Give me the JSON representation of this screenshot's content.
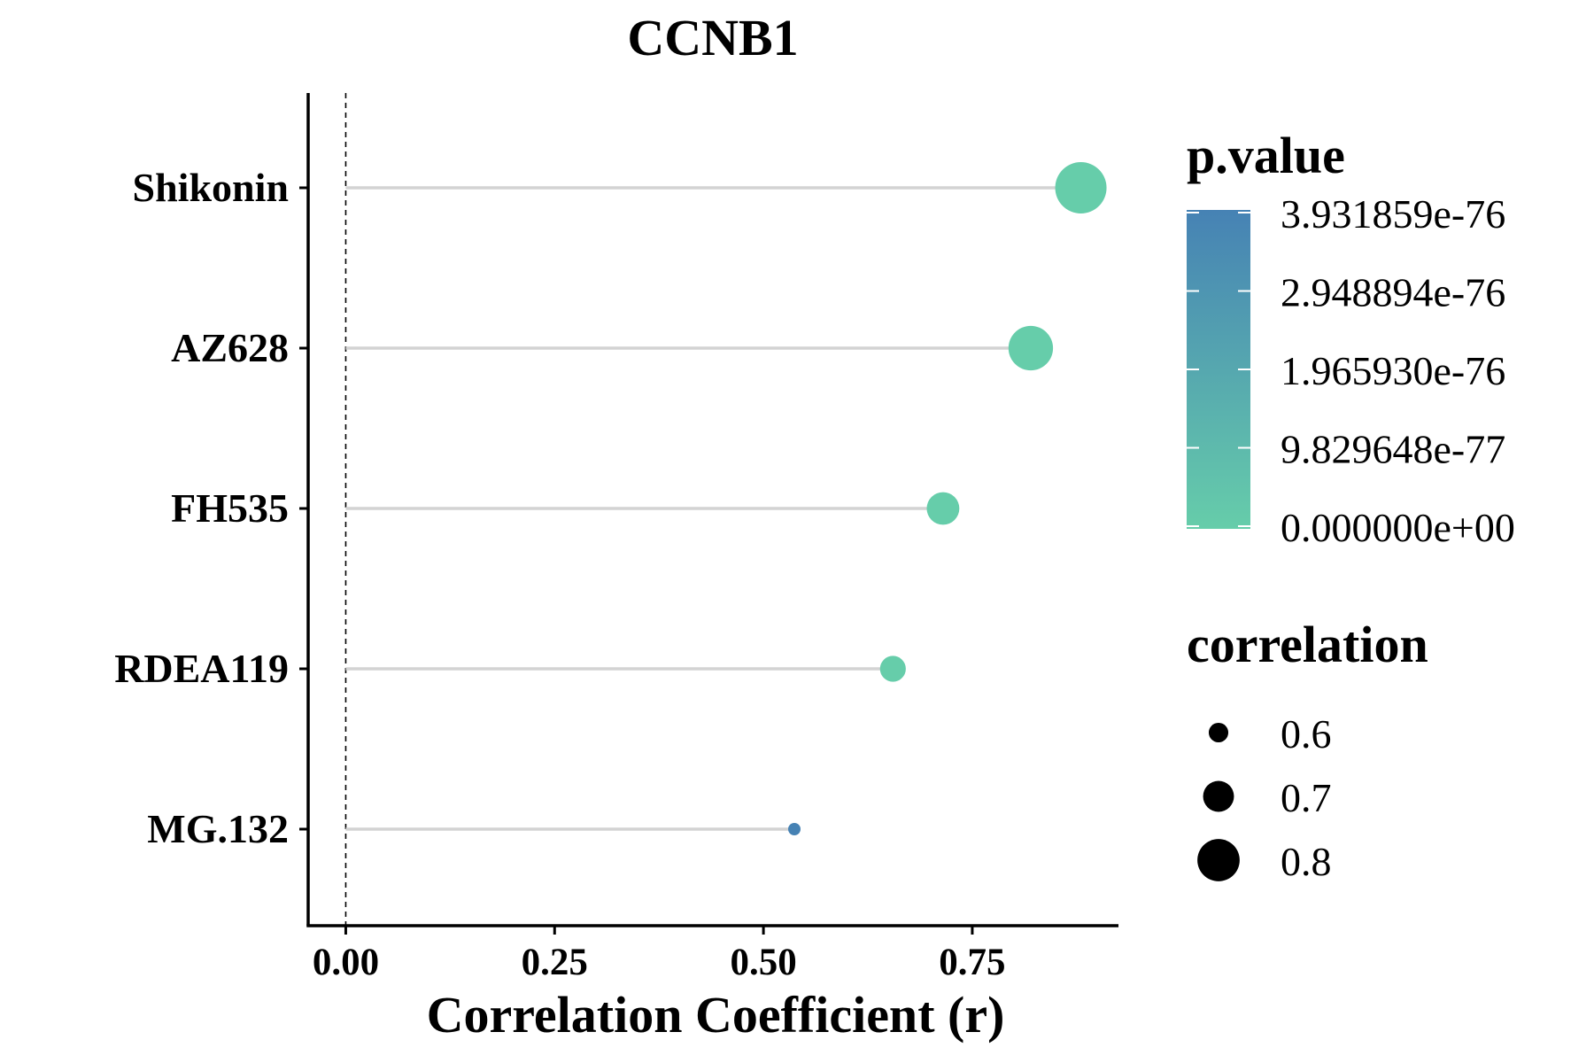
{
  "chart_data": {
    "type": "lollipop",
    "title": "CCNB1",
    "xlabel": "Correlation Coefficient (r)",
    "ylabel": "",
    "xlim": [
      -0.045,
      0.925
    ],
    "x_ticks": [
      "0.00",
      "0.25",
      "0.50",
      "0.75"
    ],
    "x_tick_values": [
      0,
      0.25,
      0.5,
      0.75
    ],
    "reference_line_x": 0,
    "grid": false,
    "categories": [
      "Shikonin",
      "AZ628",
      "FH535",
      "RDEA119",
      "MG.132"
    ],
    "values": [
      0.88,
      0.82,
      0.715,
      0.655,
      0.537
    ],
    "p_values": [
      0,
      0,
      0,
      0,
      3.931859e-76
    ],
    "colorbar": {
      "title": "p.value",
      "labels": [
        "3.931859e-76",
        "2.948894e-76",
        "1.965930e-76",
        "9.829648e-77",
        "0.000000e+00"
      ],
      "color_high": "#4682B4",
      "color_low": "#66CDAA"
    },
    "size_legend": {
      "title": "correlation",
      "labels": [
        "0.6",
        "0.7",
        "0.8"
      ],
      "values": [
        0.6,
        0.7,
        0.8
      ]
    },
    "legend_position": "right"
  }
}
